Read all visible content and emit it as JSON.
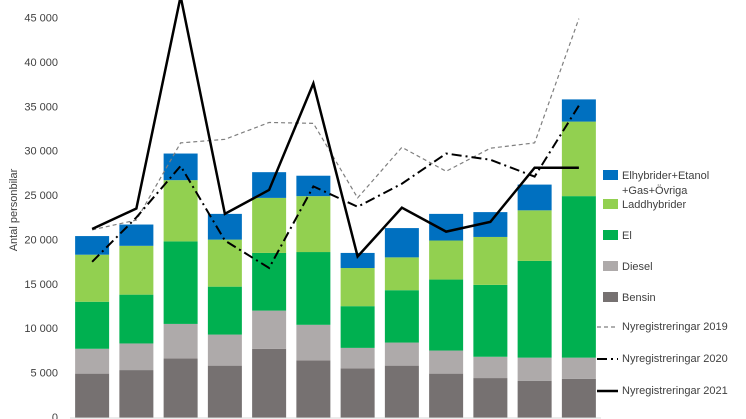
{
  "chart_data": {
    "type": "bar",
    "y_label": "Antal personbilar",
    "categories": [
      null,
      null,
      null,
      null,
      null,
      null,
      null,
      null,
      null,
      null,
      null,
      null
    ],
    "ylim": [
      0,
      47100
    ],
    "yticks": [
      {
        "value": 0,
        "label": "0"
      },
      {
        "value": 5000,
        "label": "5 000"
      },
      {
        "value": 10000,
        "label": "10 000"
      },
      {
        "value": 15000,
        "label": "15 000"
      },
      {
        "value": 20000,
        "label": "20 000"
      },
      {
        "value": 25000,
        "label": "25 000"
      },
      {
        "value": 30000,
        "label": "30 000"
      },
      {
        "value": 35000,
        "label": "35 000"
      },
      {
        "value": 40000,
        "label": "40 000"
      },
      {
        "value": 45000,
        "label": "45 000"
      }
    ],
    "series": [
      {
        "name": "Bensin",
        "type": "bar",
        "color": "#767171",
        "values": [
          5000,
          5400,
          6700,
          5900,
          7800,
          6500,
          5600,
          5900,
          5000,
          4500,
          4200,
          4400
        ]
      },
      {
        "name": "Diesel",
        "type": "bar",
        "color": "#aeaaaa",
        "values": [
          2800,
          3000,
          3900,
          3500,
          4300,
          4000,
          2300,
          2600,
          2600,
          2400,
          2600,
          2400
        ]
      },
      {
        "name": "El",
        "type": "bar",
        "color": "#00b050",
        "values": [
          5300,
          5500,
          9300,
          5400,
          6500,
          8200,
          4700,
          5900,
          8000,
          8100,
          10900,
          18200
        ]
      },
      {
        "name": "Laddhybrider",
        "type": "bar",
        "color": "#92d050",
        "values": [
          5300,
          5500,
          6900,
          5300,
          6200,
          6300,
          4300,
          3700,
          4400,
          5400,
          5700,
          8400
        ]
      },
      {
        "name": "Elhybrider+Etanol +Gas+Övriga",
        "type": "bar",
        "color": "#0070c0",
        "values": [
          2100,
          2400,
          3000,
          2900,
          2900,
          2300,
          1700,
          3300,
          3000,
          2800,
          2900,
          2500
        ]
      },
      {
        "name": "Nyregistreringar 2019",
        "type": "line",
        "color": "#7f7f7f",
        "dash": "4,3",
        "width": 1.2,
        "values": [
          21200,
          22300,
          31000,
          31400,
          33300,
          33200,
          24800,
          30500,
          27800,
          30400,
          31000,
          45000
        ]
      },
      {
        "name": "Nyregistreringar 2020",
        "type": "line",
        "color": "#000000",
        "dash": "10,4,2,4",
        "width": 2,
        "values": [
          17600,
          22600,
          28400,
          20000,
          16900,
          26100,
          23800,
          26400,
          29800,
          29100,
          27200,
          35200
        ]
      },
      {
        "name": "Nyregistreringar 2021",
        "type": "line",
        "color": "#000000",
        "dash": "none",
        "width": 2.5,
        "values": [
          21300,
          23600,
          47500,
          23000,
          25700,
          37700,
          18200,
          23700,
          21000,
          22100,
          28200,
          28200
        ]
      }
    ]
  }
}
